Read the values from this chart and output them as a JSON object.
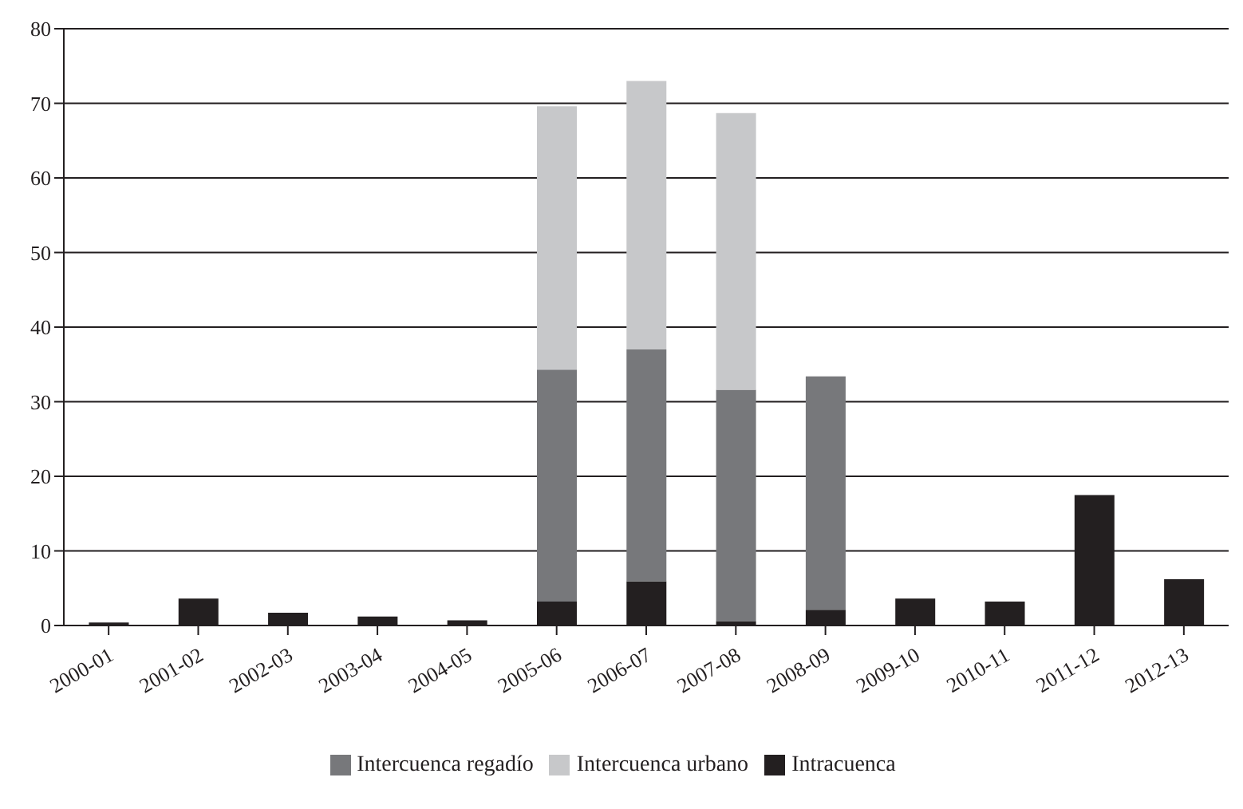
{
  "chart_data": {
    "type": "bar",
    "stacked": true,
    "categories": [
      "2000-01",
      "2001-02",
      "2002-03",
      "2003-04",
      "2004-05",
      "2005-06",
      "2006-07",
      "2007-08",
      "2008-09",
      "2009-10",
      "2010-11",
      "2011-12",
      "2012-13"
    ],
    "series": [
      {
        "name": "Intracuenca",
        "color": "#231f20",
        "values": [
          0.4,
          3.6,
          1.7,
          1.2,
          0.7,
          3.2,
          5.9,
          0.6,
          2.1,
          3.6,
          3.2,
          17.5,
          6.2
        ]
      },
      {
        "name": "Intercuenca regadío",
        "color": "#77787b",
        "values": [
          null,
          null,
          null,
          null,
          null,
          31.1,
          31.1,
          31.0,
          31.3,
          null,
          null,
          null,
          null
        ]
      },
      {
        "name": "Intercuenca urbano",
        "color": "#c7c8ca",
        "values": [
          null,
          null,
          null,
          null,
          null,
          35.3,
          36.0,
          37.1,
          null,
          null,
          null,
          null,
          null
        ]
      }
    ],
    "ylim": [
      0,
      80
    ],
    "yticks": [
      0,
      10,
      20,
      30,
      40,
      50,
      60,
      70,
      80
    ],
    "grid": "y",
    "legend": "bottom"
  }
}
